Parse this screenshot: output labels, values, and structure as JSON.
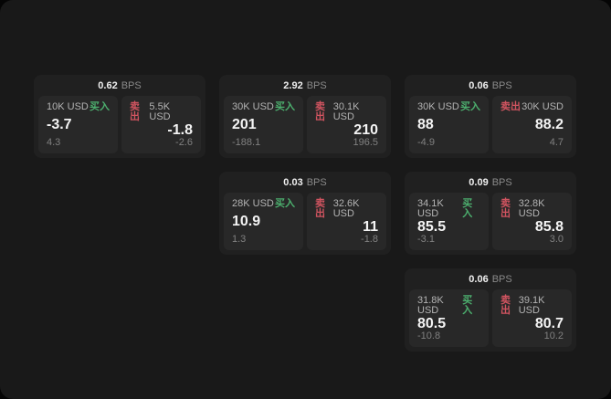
{
  "colors": {
    "buy": "#4caf6e",
    "sell": "#d15460"
  },
  "labels": {
    "bps_unit": "BPS",
    "buy": "买入",
    "sell": "卖出"
  },
  "cards": [
    {
      "row": 1,
      "col": 1,
      "bps": "0.62",
      "buy": {
        "amount": "10K USD",
        "value": "-3.7",
        "delta": "4.3"
      },
      "sell": {
        "amount": "5.5K USD",
        "value": "-1.8",
        "delta": "-2.6"
      }
    },
    {
      "row": 1,
      "col": 2,
      "bps": "2.92",
      "buy": {
        "amount": "30K USD",
        "value": "201",
        "delta": "-188.1"
      },
      "sell": {
        "amount": "30.1K USD",
        "value": "210",
        "delta": "196.5"
      }
    },
    {
      "row": 1,
      "col": 3,
      "bps": "0.06",
      "buy": {
        "amount": "30K USD",
        "value": "88",
        "delta": "-4.9"
      },
      "sell": {
        "amount": "30K USD",
        "value": "88.2",
        "delta": "4.7"
      }
    },
    {
      "row": 2,
      "col": 2,
      "bps": "0.03",
      "buy": {
        "amount": "28K USD",
        "value": "10.9",
        "delta": "1.3"
      },
      "sell": {
        "amount": "32.6K USD",
        "value": "11",
        "delta": "-1.8"
      }
    },
    {
      "row": 2,
      "col": 3,
      "bps": "0.09",
      "buy": {
        "amount": "34.1K USD",
        "value": "85.5",
        "delta": "-3.1"
      },
      "sell": {
        "amount": "32.8K USD",
        "value": "85.8",
        "delta": "3.0"
      }
    },
    {
      "row": 3,
      "col": 3,
      "bps": "0.06",
      "buy": {
        "amount": "31.8K USD",
        "value": "80.5",
        "delta": "-10.8"
      },
      "sell": {
        "amount": "39.1K USD",
        "value": "80.7",
        "delta": "10.2"
      }
    }
  ]
}
